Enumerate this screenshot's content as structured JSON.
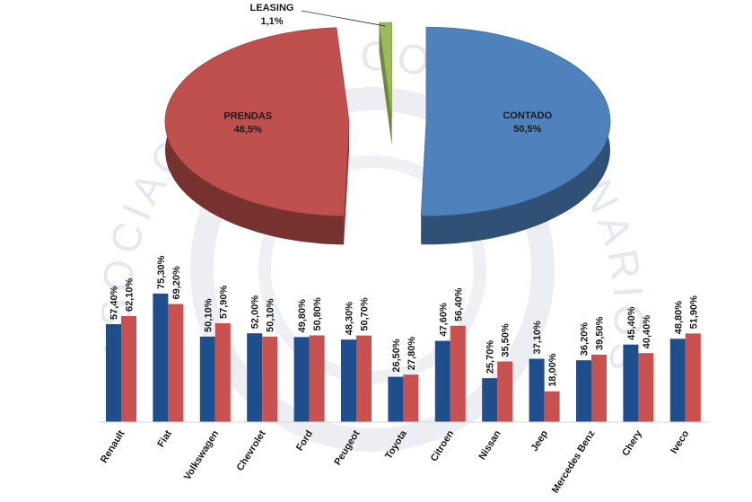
{
  "colors": {
    "contado": "#4f81bd",
    "prendas": "#c0504d",
    "leasing": "#9bbb59",
    "bar_series_a": "#1f4e8c",
    "bar_series_b": "#c9514f",
    "watermark": "#e3e6ee"
  },
  "watermark_text": "ASOCIACION DE CONCESIONARIOS DE AUTOMOTORES DE LA REPUBLICA ARGENTINA",
  "chart_data": [
    {
      "type": "pie",
      "labels": [
        "CONTADO",
        "PRENDAS",
        "LEASING"
      ],
      "values": [
        50.5,
        48.5,
        1.1
      ],
      "value_labels": [
        "50,5%",
        "48,5%",
        "1,1%"
      ]
    },
    {
      "type": "bar",
      "categories": [
        "Renault",
        "Fiat",
        "Volkswagen",
        "Chevrolet",
        "Ford",
        "Peugeot",
        "Toyota",
        "Citroen",
        "Nissan",
        "Jeep",
        "Mercedes Benz",
        "Chery",
        "Iveco"
      ],
      "series": [
        {
          "values": [
            57.4,
            75.3,
            50.1,
            52.0,
            49.8,
            48.3,
            26.5,
            47.6,
            25.7,
            37.1,
            36.2,
            45.4,
            48.8
          ],
          "value_labels": [
            "57,40%",
            "75,30%",
            "50,10%",
            "52,00%",
            "49,80%",
            "48,30%",
            "26,50%",
            "47,60%",
            "25,70%",
            "37,10%",
            "36,20%",
            "45,40%",
            "48,80%"
          ]
        },
        {
          "values": [
            62.1,
            69.2,
            57.9,
            50.1,
            50.8,
            50.7,
            27.8,
            56.4,
            35.5,
            18.0,
            39.5,
            40.4,
            51.9
          ],
          "value_labels": [
            "62,10%",
            "69,20%",
            "57,90%",
            "50,10%",
            "50,80%",
            "50,70%",
            "27,80%",
            "56,40%",
            "35,50%",
            "18,00%",
            "39,50%",
            "40,40%",
            "51,90%"
          ]
        }
      ],
      "ylim": [
        0,
        100
      ]
    }
  ]
}
